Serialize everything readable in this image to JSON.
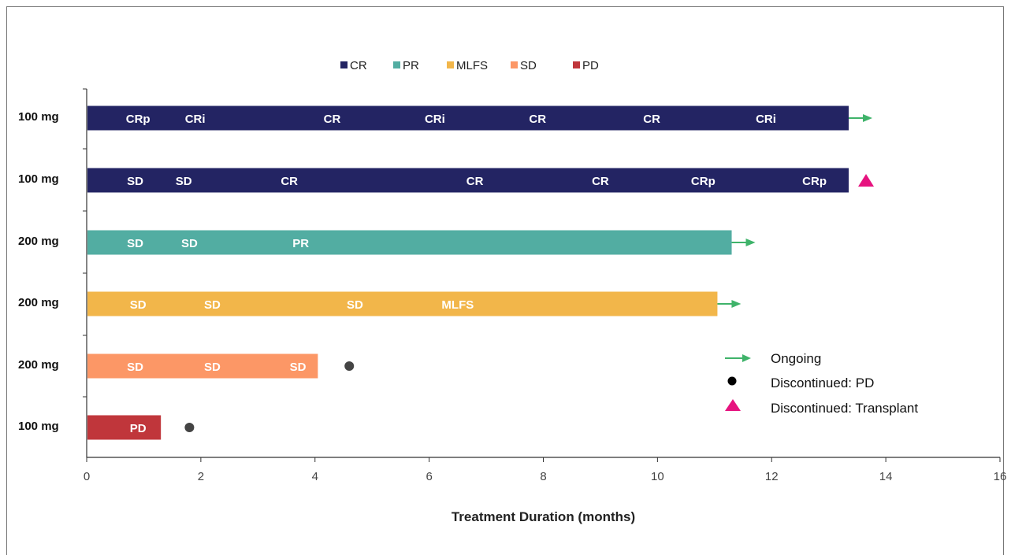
{
  "chart_data": {
    "type": "bar",
    "orientation": "horizontal",
    "chart_style": "swimmer plot",
    "xlabel": "Treatment Duration (months)",
    "ylabel": "",
    "xlim": [
      0,
      16
    ],
    "xticks": [
      "0",
      "2",
      "4",
      "6",
      "8",
      "10",
      "12",
      "14",
      "16"
    ],
    "grid": false,
    "legend_placement": "top-center",
    "legend": [
      {
        "name": "CR",
        "color": "#232463"
      },
      {
        "name": "PR",
        "color": "#52ada2"
      },
      {
        "name": "MLFS",
        "color": "#f2b64a"
      },
      {
        "name": "SD",
        "color": "#fc9766"
      },
      {
        "name": "PD",
        "color": "#c0363b"
      }
    ],
    "patients": [
      {
        "dose": "100 mg",
        "duration": 13.35,
        "color": "#232463",
        "end_marker": "ongoing",
        "responses": [
          {
            "label": "CRp",
            "month": 0.9
          },
          {
            "label": "CRi",
            "month": 1.9
          },
          {
            "label": "CR",
            "month": 4.3
          },
          {
            "label": "CRi",
            "month": 6.1
          },
          {
            "label": "CR",
            "month": 7.9
          },
          {
            "label": "CR",
            "month": 9.9
          },
          {
            "label": "CRi",
            "month": 11.9
          }
        ]
      },
      {
        "dose": "100 mg",
        "duration": 13.35,
        "color": "#232463",
        "end_marker": "transplant",
        "responses": [
          {
            "label": "SD",
            "month": 0.85
          },
          {
            "label": "SD",
            "month": 1.7
          },
          {
            "label": "CR",
            "month": 3.55
          },
          {
            "label": "CR",
            "month": 6.8
          },
          {
            "label": "CR",
            "month": 9.0
          },
          {
            "label": "CRp",
            "month": 10.8
          },
          {
            "label": "CRp",
            "month": 12.75
          }
        ]
      },
      {
        "dose": "200 mg",
        "duration": 11.3,
        "color": "#52ada2",
        "end_marker": "ongoing",
        "responses": [
          {
            "label": "SD",
            "month": 0.85
          },
          {
            "label": "SD",
            "month": 1.8
          },
          {
            "label": "PR",
            "month": 3.75
          }
        ]
      },
      {
        "dose": "200 mg",
        "duration": 11.05,
        "color": "#f2b64a",
        "end_marker": "ongoing",
        "responses": [
          {
            "label": "SD",
            "month": 0.9
          },
          {
            "label": "SD",
            "month": 2.2
          },
          {
            "label": "SD",
            "month": 4.7
          },
          {
            "label": "MLFS",
            "month": 6.5
          }
        ]
      },
      {
        "dose": "200 mg",
        "duration": 4.05,
        "color": "#fc9766",
        "end_marker": "pd",
        "marker_month": 4.6,
        "responses": [
          {
            "label": "SD",
            "month": 0.85
          },
          {
            "label": "SD",
            "month": 2.2
          },
          {
            "label": "SD",
            "month": 3.7
          }
        ]
      },
      {
        "dose": "100 mg",
        "duration": 1.3,
        "color": "#c0363b",
        "end_marker": "pd",
        "marker_month": 1.8,
        "responses": [
          {
            "label": "PD",
            "month": 0.9
          }
        ]
      }
    ],
    "end_markers": [
      {
        "key": "ongoing",
        "label": "Ongoing",
        "color": "#3fb36a"
      },
      {
        "key": "pd",
        "label": "Discontinued: PD",
        "color": "#111111"
      },
      {
        "key": "transplant",
        "label": "Discontinued: Transplant",
        "color": "#e6137f"
      }
    ]
  }
}
